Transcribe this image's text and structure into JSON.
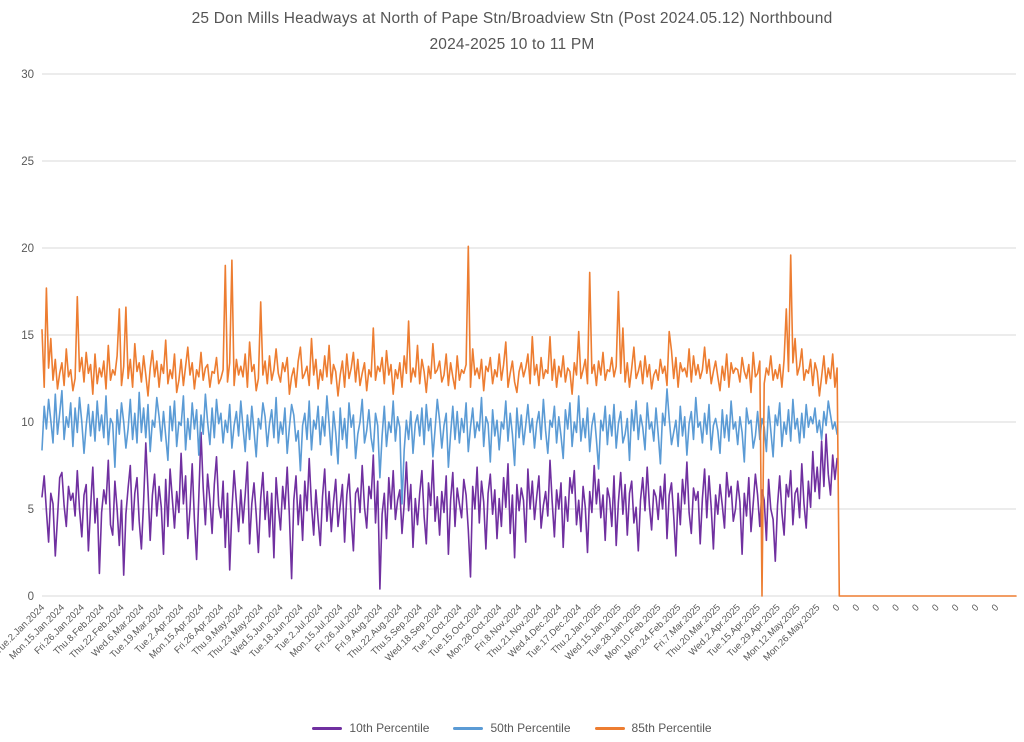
{
  "chart_data": {
    "type": "line",
    "title": "25 Don Mills Headways at North of Pape Stn/Broadview Stn (Post 2024.05.12) Northbound",
    "subtitle": "2024-2025 10 to 11 PM",
    "xlabel": "",
    "ylabel": "",
    "ylim": [
      0,
      30
    ],
    "y_ticks": [
      0,
      5,
      10,
      15,
      20,
      25,
      30
    ],
    "grid": "horizontal",
    "gridline_color": "#D9D9D9",
    "axis_text_color": "#595959",
    "legend_position": "bottom",
    "n_categories": 442,
    "tick_interval": 9,
    "x_tick_labels": [
      "Tue.2.Jan.2024",
      "Mon.15.Jan.2024",
      "Fri.26.Jan.2024",
      "Thu.8.Feb.2024",
      "Thu.22.Feb.2024",
      "Wed.6.Mar.2024",
      "Tue.19.Mar.2024",
      "Tue.2.Apr.2024",
      "Mon.15.Apr.2024",
      "Fri.26.Apr.2024",
      "Thu.9.May.2024",
      "Thu.23.May.2024",
      "Wed.5.Jun.2024",
      "Tue.18.Jun.2024",
      "Tue.2.Jul.2024",
      "Mon.15.Jul.2024",
      "Fri.26.Jul.2024",
      "Fri.9.Aug.2024",
      "Thu.22.Aug.2024",
      "Thu.5.Sep.2024",
      "Wed.18.Sep.2024",
      "Tue.1.Oct.2024",
      "Tue.15.Oct.2024",
      "Mon.28.Oct.2024",
      "Fri.8.Nov.2024",
      "Thu.21.Nov.2024",
      "Wed.4.Dec.2024",
      "Tue.17.Dec.2024",
      "Thu.2.Jan.2025",
      "Wed.15.Jan.2025",
      "Tue.28.Jan.2025",
      "Mon.10.Feb.2025",
      "Mon.24.Feb.2025",
      "Fri.7.Mar.2025",
      "Thu.20.Mar.2025",
      "Wed.2.Apr.2025",
      "Tue.15.Apr.2025",
      "Tue.29.Apr.2025",
      "Mon.12.May.2025",
      "Mon.26.May.2025",
      "0",
      "0",
      "0",
      "0",
      "0",
      "0",
      "0",
      "0",
      "0"
    ],
    "series": [
      {
        "name": "10th Percentile",
        "color": "#7030A0",
        "values": [
          5.7,
          6.9,
          4.9,
          3.1,
          5.9,
          5.3,
          2.3,
          4.5,
          6.8,
          7.1,
          5.2,
          4.0,
          6.3,
          5.5,
          5.9,
          4.6,
          7.2,
          5.0,
          3.4,
          5.8,
          6.4,
          2.6,
          5.1,
          7.4,
          4.2,
          5.6,
          1.3,
          4.8,
          6.1,
          5.3,
          7.8,
          4.1,
          3.5,
          6.6,
          5.0,
          2.9,
          5.5,
          1.2,
          4.7,
          6.2,
          7.5,
          3.8,
          5.9,
          6.8,
          4.3,
          2.7,
          5.4,
          8.8,
          6.1,
          3.2,
          5.8,
          7.0,
          4.6,
          6.3,
          5.1,
          2.4,
          6.7,
          4.0,
          7.3,
          5.6,
          3.9,
          6.0,
          4.8,
          8.2,
          5.3,
          6.9,
          3.3,
          5.0,
          7.6,
          4.4,
          2.1,
          5.7,
          9.4,
          6.2,
          4.1,
          7.0,
          5.5,
          3.6,
          6.4,
          8.0,
          5.2,
          4.5,
          6.6,
          2.8,
          5.9,
          1.5,
          4.9,
          7.2,
          5.4,
          3.7,
          6.1,
          4.2,
          5.8,
          7.7,
          3.0,
          5.3,
          6.5,
          4.7,
          2.5,
          5.6,
          7.1,
          4.4,
          6.0,
          3.4,
          5.9,
          2.2,
          6.8,
          5.1,
          3.8,
          6.3,
          5.0,
          7.4,
          4.6,
          1.0,
          5.5,
          6.9,
          4.1,
          5.8,
          3.2,
          6.6,
          4.9,
          7.9,
          5.2,
          3.5,
          6.1,
          4.4,
          2.9,
          5.7,
          7.3,
          4.3,
          6.0,
          3.7,
          5.4,
          6.7,
          4.0,
          5.2,
          6.4,
          3.1,
          5.8,
          7.0,
          4.5,
          2.6,
          5.9,
          6.2,
          4.8,
          7.5,
          5.1,
          3.9,
          6.3,
          5.6,
          8.1,
          4.2,
          6.6,
          0.4,
          4.7,
          5.9,
          3.3,
          6.8,
          5.0,
          7.2,
          4.4,
          5.5,
          6.1,
          3.6,
          5.3,
          7.7,
          4.9,
          6.4,
          2.8,
          5.6,
          4.1,
          5.9,
          7.2,
          4.6,
          3.0,
          6.5,
          5.2,
          7.8,
          4.3,
          5.7,
          3.5,
          6.0,
          4.8,
          6.9,
          2.4,
          5.5,
          7.1,
          4.0,
          6.2,
          5.3,
          4.5,
          6.7,
          5.8,
          3.8,
          1.1,
          6.3,
          5.0,
          7.4,
          4.2,
          6.6,
          5.4,
          2.7,
          5.9,
          7.0,
          4.7,
          6.1,
          3.3,
          5.6,
          4.0,
          6.8,
          5.1,
          7.6,
          3.6,
          5.8,
          2.2,
          6.4,
          4.9,
          6.2,
          5.5,
          3.1,
          7.3,
          5.0,
          6.6,
          4.4,
          5.7,
          6.9,
          3.9,
          5.2,
          6.0,
          4.6,
          7.8,
          5.4,
          3.4,
          6.1,
          5.0,
          6.5,
          2.8,
          5.7,
          4.3,
          6.8,
          5.9,
          7.2,
          4.1,
          5.5,
          3.7,
          6.3,
          5.1,
          2.5,
          6.0,
          4.8,
          7.5,
          5.3,
          6.7,
          4.5,
          5.8,
          3.2,
          6.2,
          5.6,
          4.0,
          6.9,
          2.9,
          5.4,
          7.1,
          4.7,
          6.4,
          3.5,
          5.9,
          6.6,
          4.2,
          5.1,
          2.6,
          5.5,
          6.8,
          4.9,
          7.4,
          5.2,
          3.8,
          6.1,
          5.7,
          4.4,
          6.3,
          5.0,
          7.0,
          3.3,
          5.8,
          6.5,
          4.6,
          2.3,
          5.9,
          4.1,
          6.7,
          5.3,
          7.7,
          4.8,
          3.6,
          6.2,
          5.5,
          6.0,
          3.0,
          5.6,
          7.3,
          4.5,
          6.9,
          5.1,
          2.7,
          5.8,
          4.7,
          6.4,
          5.2,
          3.9,
          7.1,
          5.7,
          6.3,
          4.3,
          5.0,
          6.6,
          5.4,
          2.4,
          5.9,
          4.6,
          6.8,
          3.7,
          5.3,
          7.0,
          5.8,
          4.0,
          6.1,
          5.5,
          3.2,
          6.7,
          5.0,
          4.4,
          2.0,
          5.2,
          6.9,
          4.8,
          3.5,
          6.4,
          5.7,
          7.2,
          4.1,
          5.9,
          6.2,
          4.5,
          7.6,
          5.3,
          3.9,
          6.6,
          5.1,
          8.3,
          6.0,
          7.4,
          5.6,
          8.9,
          6.3,
          9.3,
          7.0,
          5.8,
          8.1,
          6.7,
          7.9
        ]
      },
      {
        "name": "50th Percentile",
        "color": "#5B9BD5",
        "values": [
          8.4,
          10.9,
          9.6,
          11.3,
          10.1,
          8.8,
          11.6,
          9.3,
          10.5,
          11.8,
          9.0,
          10.3,
          9.7,
          11.1,
          8.6,
          10.8,
          9.4,
          11.4,
          10.0,
          8.2,
          9.8,
          11.0,
          9.2,
          10.6,
          8.9,
          11.2,
          9.5,
          10.4,
          9.1,
          11.5,
          8.7,
          10.2,
          9.9,
          7.4,
          10.7,
          9.3,
          11.1,
          10.0,
          8.5,
          9.6,
          11.3,
          9.0,
          10.5,
          8.8,
          11.7,
          9.4,
          10.8,
          9.1,
          11.0,
          8.3,
          10.1,
          9.7,
          11.4,
          10.3,
          8.9,
          10.6,
          9.2,
          7.8,
          10.9,
          9.5,
          11.2,
          8.6,
          10.0,
          9.8,
          11.5,
          8.4,
          10.2,
          9.0,
          11.1,
          9.6,
          10.7,
          8.1,
          10.4,
          9.3,
          11.6,
          10.0,
          8.7,
          10.8,
          9.1,
          11.3,
          9.9,
          10.5,
          8.8,
          10.1,
          9.4,
          11.0,
          8.5,
          9.8,
          10.6,
          9.2,
          11.2,
          9.7,
          8.3,
          10.4,
          9.0,
          10.9,
          9.5,
          8.0,
          10.2,
          9.6,
          11.1,
          10.3,
          8.6,
          9.9,
          10.7,
          9.1,
          11.4,
          8.8,
          10.0,
          9.3,
          10.8,
          8.2,
          9.7,
          11.0,
          10.4,
          8.9,
          9.5,
          7.2,
          9.8,
          10.5,
          9.0,
          11.2,
          8.4,
          10.1,
          9.6,
          10.9,
          8.7,
          10.3,
          9.2,
          11.5,
          9.9,
          8.1,
          10.6,
          9.4,
          7.6,
          10.8,
          9.0,
          10.2,
          8.5,
          11.1,
          9.7,
          10.4,
          7.9,
          9.3,
          10.0,
          11.3,
          8.8,
          9.5,
          10.7,
          9.1,
          8.3,
          10.5,
          9.8,
          6.8,
          9.2,
          10.9,
          8.6,
          10.0,
          9.4,
          11.2,
          8.9,
          10.3,
          9.7,
          5.3,
          8.4,
          10.1,
          9.0,
          10.6,
          8.2,
          9.9,
          10.4,
          9.2,
          10.8,
          8.7,
          11.0,
          9.5,
          10.2,
          8.0,
          9.6,
          11.3,
          10.1,
          8.5,
          9.8,
          10.5,
          7.4,
          9.3,
          10.9,
          9.0,
          10.6,
          8.8,
          10.2,
          9.4,
          11.1,
          8.3,
          9.7,
          10.8,
          9.1,
          10.0,
          9.5,
          11.4,
          8.6,
          10.3,
          9.9,
          7.7,
          10.7,
          9.2,
          10.1,
          8.4,
          10.0,
          9.6,
          11.2,
          8.9,
          10.5,
          9.3,
          7.5,
          10.8,
          9.1,
          10.4,
          8.7,
          9.8,
          11.0,
          9.4,
          10.2,
          8.5,
          9.9,
          10.6,
          9.0,
          11.3,
          9.5,
          8.2,
          10.1,
          9.7,
          10.9,
          8.8,
          10.3,
          9.2,
          7.9,
          10.7,
          9.6,
          11.1,
          8.6,
          10.0,
          9.4,
          11.5,
          8.9,
          10.2,
          9.1,
          10.8,
          8.3,
          9.8,
          10.5,
          9.0,
          7.3,
          10.1,
          9.5,
          10.9,
          8.7,
          10.4,
          9.2,
          11.0,
          8.5,
          9.9,
          10.6,
          8.8,
          9.3,
          10.2,
          7.8,
          10.7,
          9.5,
          11.2,
          9.0,
          10.4,
          9.7,
          8.4,
          11.1,
          9.6,
          10.0,
          8.9,
          10.8,
          9.3,
          7.6,
          10.5,
          9.8,
          11.9,
          10.2,
          8.7,
          9.4,
          10.1,
          8.6,
          10.9,
          9.2,
          10.3,
          8.1,
          9.9,
          10.6,
          9.0,
          11.4,
          9.7,
          10.0,
          8.8,
          10.5,
          9.3,
          11.0,
          8.4,
          9.8,
          10.2,
          9.5,
          8.2,
          10.7,
          9.1,
          10.4,
          8.9,
          11.2,
          9.6,
          10.0,
          8.7,
          10.3,
          9.4,
          7.7,
          10.8,
          9.9,
          10.1,
          8.5,
          9.2,
          10.6,
          9.0,
          10.2,
          9.7,
          8.3,
          10.9,
          9.5,
          8.0,
          10.4,
          9.8,
          11.1,
          8.6,
          10.0,
          9.3,
          10.7,
          8.9,
          11.3,
          9.6,
          10.2,
          8.8,
          10.5,
          9.1,
          11.0,
          9.7,
          10.3,
          9.9,
          10.8,
          9.4,
          10.1,
          9.0,
          10.6,
          9.8,
          11.2,
          10.4,
          9.6,
          10.0,
          9.3
        ]
      },
      {
        "name": "85th Percentile",
        "color": "#ED7D31",
        "values": [
          15.3,
          12.0,
          17.7,
          13.1,
          14.8,
          12.4,
          13.6,
          11.9,
          12.8,
          13.4,
          12.1,
          14.2,
          12.6,
          13.0,
          11.8,
          12.5,
          17.2,
          12.9,
          13.7,
          12.3,
          14.0,
          12.8,
          13.3,
          11.6,
          13.9,
          12.2,
          13.1,
          12.6,
          13.5,
          11.9,
          14.4,
          12.4,
          13.0,
          12.7,
          13.8,
          16.5,
          12.1,
          13.2,
          16.6,
          12.5,
          13.6,
          12.0,
          14.5,
          12.9,
          13.4,
          12.3,
          13.8,
          12.7,
          11.5,
          13.1,
          14.1,
          12.6,
          13.5,
          12.0,
          13.3,
          12.8,
          14.7,
          12.2,
          13.0,
          12.5,
          13.9,
          11.7,
          12.4,
          13.6,
          12.1,
          13.2,
          14.3,
          12.7,
          13.4,
          11.9,
          13.0,
          12.6,
          14.0,
          12.4,
          13.1,
          13.3,
          12.0,
          12.9,
          12.8,
          13.7,
          12.2,
          12.5,
          13.0,
          19.0,
          12.3,
          13.4,
          19.3,
          12.1,
          13.6,
          12.7,
          13.2,
          12.6,
          13.9,
          12.0,
          14.6,
          12.9,
          13.3,
          11.8,
          12.5,
          16.9,
          12.7,
          13.5,
          12.2,
          13.8,
          12.4,
          13.0,
          14.2,
          12.8,
          12.3,
          13.4,
          12.9,
          13.7,
          11.6,
          12.6,
          13.1,
          12.0,
          13.5,
          14.3,
          12.5,
          12.8,
          13.2,
          12.1,
          14.8,
          12.7,
          13.6,
          11.9,
          13.0,
          12.4,
          13.8,
          12.6,
          14.4,
          12.2,
          13.3,
          12.9,
          11.5,
          12.7,
          13.5,
          12.0,
          13.9,
          12.5,
          13.1,
          14.0,
          12.3,
          13.6,
          12.1,
          12.8,
          13.4,
          11.8,
          13.0,
          12.6,
          15.4,
          12.4,
          13.2,
          12.9,
          13.7,
          12.2,
          14.1,
          12.7,
          13.3,
          11.6,
          13.0,
          12.5,
          13.4,
          12.0,
          13.8,
          12.8,
          15.8,
          12.3,
          13.1,
          12.6,
          14.4,
          12.2,
          13.6,
          12.9,
          11.7,
          13.2,
          12.5,
          14.5,
          12.8,
          13.0,
          13.5,
          12.3,
          12.7,
          13.9,
          12.1,
          13.4,
          12.6,
          11.9,
          13.8,
          12.4,
          13.0,
          12.8,
          13.3,
          20.1,
          12.0,
          14.2,
          12.7,
          13.1,
          12.5,
          13.6,
          11.8,
          13.2,
          12.9,
          13.7,
          12.2,
          13.0,
          12.6,
          13.9,
          12.4,
          13.3,
          14.6,
          12.0,
          12.8,
          13.5,
          12.3,
          11.7,
          12.9,
          13.4,
          12.6,
          13.1,
          13.9,
          12.2,
          14.9,
          12.7,
          13.3,
          12.1,
          13.7,
          12.5,
          13.0,
          12.8,
          14.9,
          12.4,
          13.6,
          12.0,
          13.2,
          12.6,
          13.8,
          12.3,
          13.1,
          12.9,
          11.6,
          13.4,
          12.7,
          15.2,
          12.5,
          13.0,
          13.6,
          12.2,
          18.6,
          12.8,
          13.3,
          12.1,
          13.5,
          12.7,
          14.0,
          12.4,
          13.0,
          12.9,
          13.7,
          12.6,
          13.2,
          17.5,
          12.8,
          15.4,
          12.3,
          13.4,
          12.0,
          13.1,
          14.3,
          12.5,
          12.9,
          13.5,
          12.2,
          13.8,
          12.6,
          13.3,
          11.9,
          12.7,
          13.0,
          12.4,
          13.6,
          12.8,
          13.2,
          12.1,
          15.2,
          14.1,
          12.5,
          13.7,
          12.0,
          13.4,
          12.9,
          13.1,
          12.6,
          14.2,
          12.3,
          13.8,
          12.7,
          13.3,
          12.5,
          13.0,
          14.3,
          12.8,
          13.6,
          12.2,
          12.9,
          13.5,
          12.6,
          11.8,
          13.2,
          12.4,
          13.9,
          12.0,
          13.4,
          12.8,
          13.1,
          13.0,
          12.3,
          13.7,
          12.9,
          12.5,
          13.3,
          11.7,
          14.0,
          12.6,
          12.8,
          13.5,
          0.0,
          12.2,
          13.1,
          12.7,
          13.8,
          12.4,
          13.0,
          12.5,
          13.3,
          12.0,
          13.6,
          16.5,
          12.9,
          19.6,
          13.4,
          14.8,
          12.7,
          13.2,
          14.2,
          12.4,
          13.0,
          12.8,
          13.6,
          12.1,
          13.4,
          12.9,
          11.5,
          12.6,
          13.8,
          12.2,
          13.1,
          12.5,
          13.9,
          12.0,
          13.1,
          0,
          0,
          0,
          0,
          0,
          0,
          0,
          0,
          0,
          0,
          0,
          0,
          0,
          0,
          0,
          0,
          0,
          0,
          0,
          0,
          0,
          0,
          0,
          0,
          0,
          0,
          0,
          0,
          0,
          0,
          0,
          0,
          0,
          0,
          0,
          0,
          0,
          0,
          0,
          0,
          0,
          0,
          0,
          0,
          0,
          0,
          0,
          0,
          0,
          0,
          0,
          0,
          0,
          0,
          0,
          0,
          0,
          0,
          0,
          0,
          0,
          0,
          0,
          0,
          0,
          0,
          0,
          0,
          0,
          0,
          0,
          0,
          0,
          0,
          0,
          0,
          0,
          0,
          0,
          0,
          0
        ]
      }
    ]
  }
}
